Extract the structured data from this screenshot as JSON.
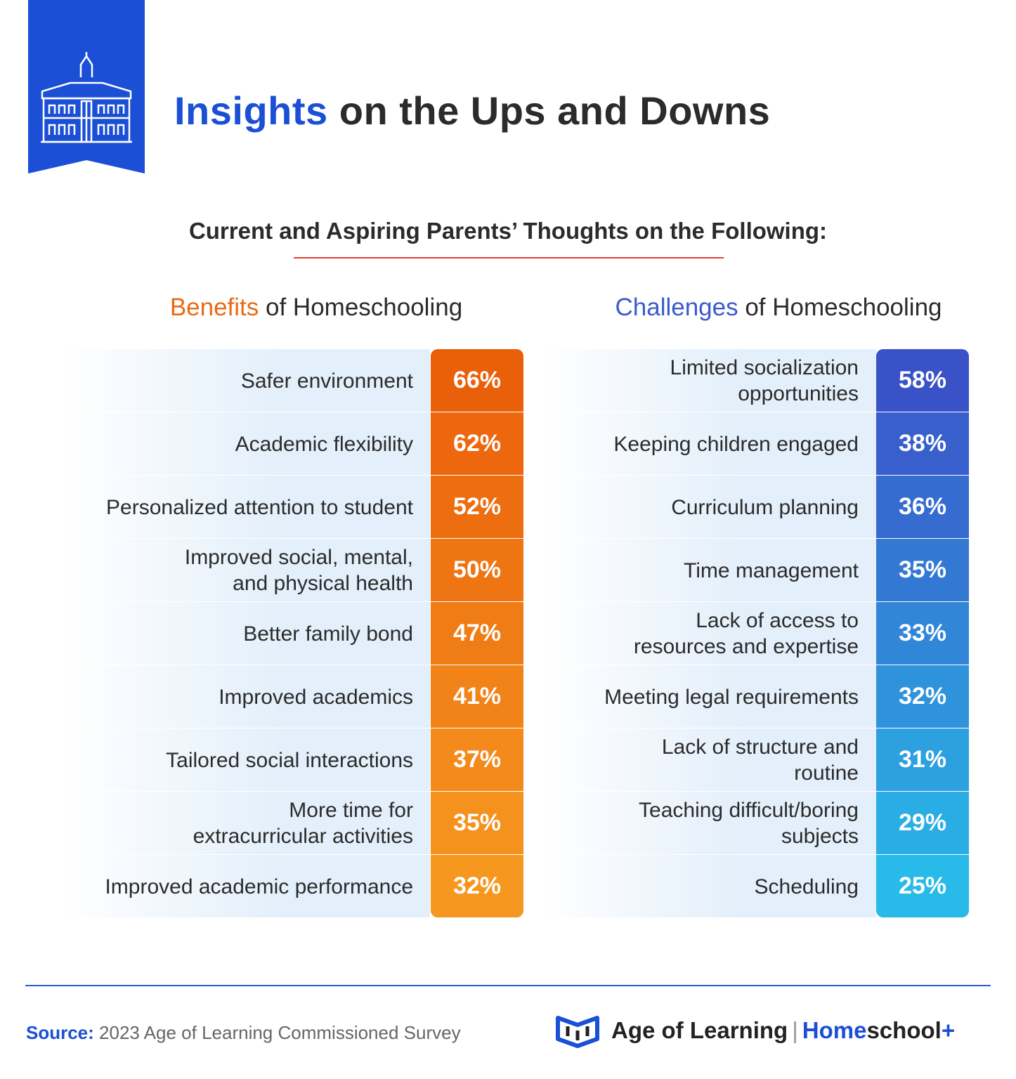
{
  "header": {
    "title_highlight": "Insights",
    "title_rest": "on the Ups and Downs"
  },
  "subtitle": "Current and Aspiring Parents’ Thoughts on the Following:",
  "benefits": {
    "heading_highlight": "Benefits",
    "heading_rest": "of Homeschooling",
    "items": [
      {
        "label": [
          "Safer environment"
        ],
        "value": "66%"
      },
      {
        "label": [
          "Academic flexibility"
        ],
        "value": "62%"
      },
      {
        "label": [
          "Personalized attention to student"
        ],
        "value": "52%"
      },
      {
        "label": [
          "Improved social, mental,",
          "and physical health"
        ],
        "value": "50%"
      },
      {
        "label": [
          "Better family bond"
        ],
        "value": "47%"
      },
      {
        "label": [
          "Improved academics"
        ],
        "value": "41%"
      },
      {
        "label": [
          "Tailored social interactions"
        ],
        "value": "37%"
      },
      {
        "label": [
          "More time for",
          "extracurricular activities"
        ],
        "value": "35%"
      },
      {
        "label": [
          "Improved academic performance"
        ],
        "value": "32%"
      }
    ]
  },
  "challenges": {
    "heading_highlight": "Challenges",
    "heading_rest": "of Homeschooling",
    "items": [
      {
        "label": [
          "Limited socialization",
          "opportunities"
        ],
        "value": "58%"
      },
      {
        "label": [
          "Keeping children engaged"
        ],
        "value": "38%"
      },
      {
        "label": [
          "Curriculum planning"
        ],
        "value": "36%"
      },
      {
        "label": [
          "Time management"
        ],
        "value": "35%"
      },
      {
        "label": [
          "Lack of access to",
          "resources and expertise"
        ],
        "value": "33%"
      },
      {
        "label": [
          "Meeting legal requirements"
        ],
        "value": "32%"
      },
      {
        "label": [
          "Lack of structure and",
          "routine"
        ],
        "value": "31%"
      },
      {
        "label": [
          "Teaching difficult/boring",
          "subjects"
        ],
        "value": "29%"
      },
      {
        "label": [
          "Scheduling"
        ],
        "value": "25%"
      }
    ]
  },
  "footer": {
    "source_label": "Source:",
    "source_text": "2023 Age of Learning Commissioned Survey",
    "brand": "Age of Learning",
    "separator": "|",
    "product_highlight": "Home",
    "product_rest": "school",
    "product_plus": "+"
  }
}
